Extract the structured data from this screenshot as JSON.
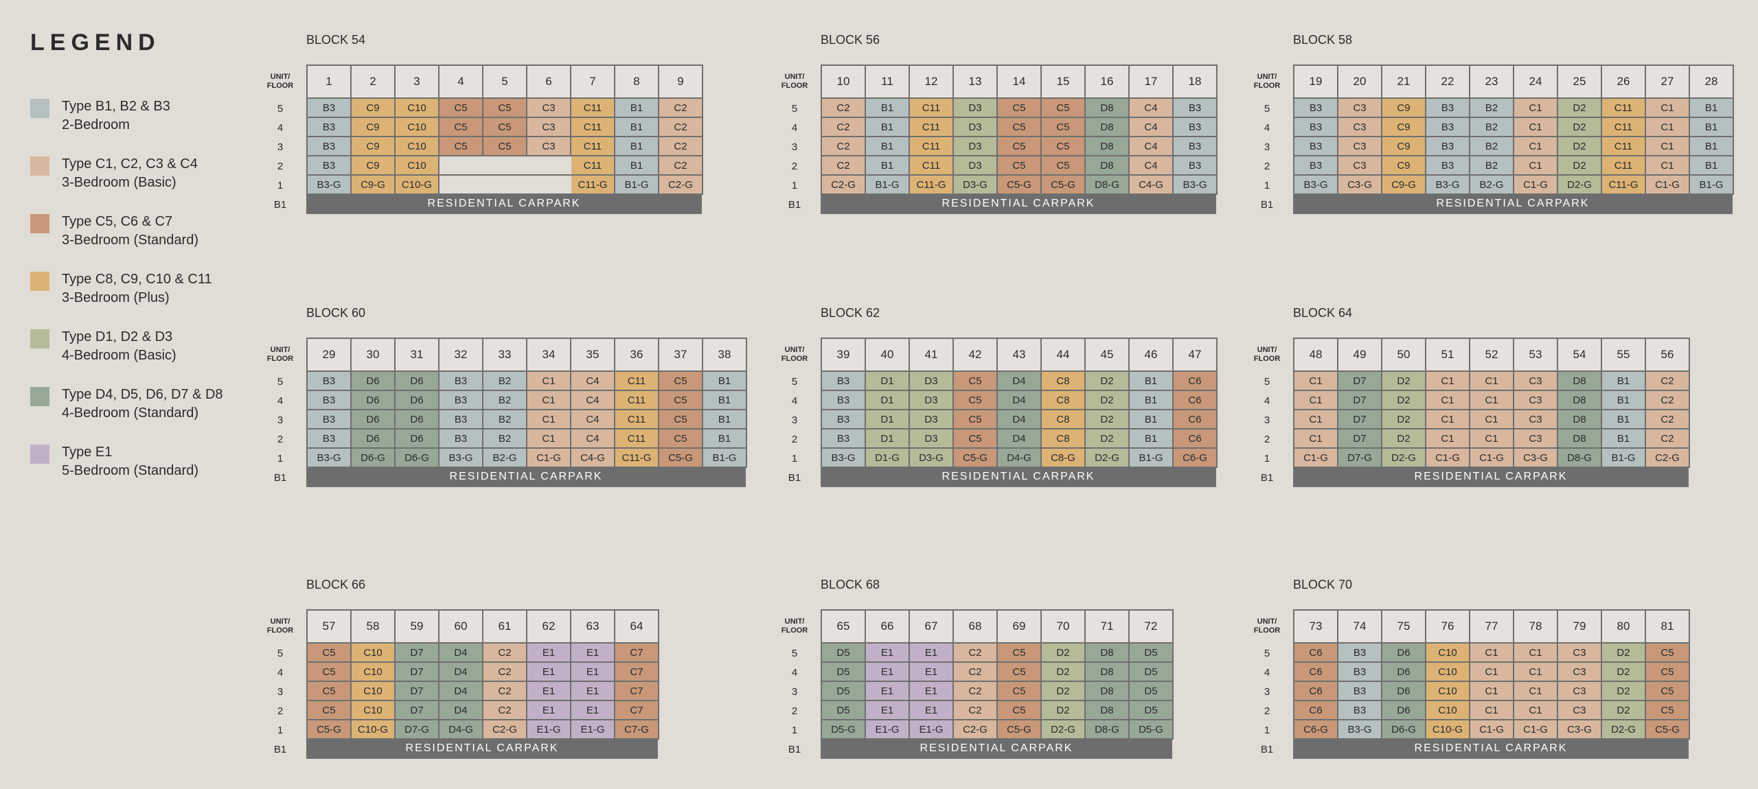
{
  "legend": {
    "title": "LEGEND",
    "items": [
      {
        "type": "B",
        "line1": "Type B1, B2 & B3",
        "line2": "2-Bedroom",
        "color": "#b5c0c0"
      },
      {
        "type": "CB",
        "line1": "Type C1, C2, C3 & C4",
        "line2": "3-Bedroom (Basic)",
        "color": "#d8b79e"
      },
      {
        "type": "CS",
        "line1": "Type C5, C6 & C7",
        "line2": "3-Bedroom (Standard)",
        "color": "#c89878"
      },
      {
        "type": "CP",
        "line1": "Type C8, C9, C10 & C11",
        "line2": "3-Bedroom (Plus)",
        "color": "#ddb375"
      },
      {
        "type": "DB",
        "line1": "Type D1, D2 & D3",
        "line2": "4-Bedroom (Basic)",
        "color": "#b5bb99"
      },
      {
        "type": "DS",
        "line1": "Type D4, D5, D6, D7 & D8",
        "line2": "4-Bedroom (Standard)",
        "color": "#97a897"
      },
      {
        "type": "E",
        "line1": "Type E1",
        "line2": "5-Bedroom (Standard)",
        "color": "#c2b0c8"
      }
    ]
  },
  "labels": {
    "unit_floor": "UNIT/ FLOOR",
    "floors": [
      "5",
      "4",
      "3",
      "2",
      "1",
      "B1"
    ],
    "carpark": "RESIDENTIAL CARPARK"
  },
  "blocks": [
    {
      "name": "BLOCK 54",
      "units": [
        "1",
        "2",
        "3",
        "4",
        "5",
        "6",
        "7",
        "8",
        "9"
      ],
      "upper": [
        "B3",
        "C9",
        "C10",
        "C5",
        "C5",
        "C3",
        "C11",
        "B1",
        "C2"
      ],
      "ground": [
        "B3-G",
        "C9-G",
        "C10-G",
        "",
        "",
        "",
        "C11-G",
        "B1-G",
        "C2-G"
      ],
      "floor2_empty": [
        3,
        4,
        5
      ]
    },
    {
      "name": "BLOCK 56",
      "units": [
        "10",
        "11",
        "12",
        "13",
        "14",
        "15",
        "16",
        "17",
        "18"
      ],
      "upper": [
        "C2",
        "B1",
        "C11",
        "D3",
        "C5",
        "C5",
        "D8",
        "C4",
        "B3"
      ],
      "ground": [
        "C2-G",
        "B1-G",
        "C11-G",
        "D3-G",
        "C5-G",
        "C5-G",
        "D8-G",
        "C4-G",
        "B3-G"
      ]
    },
    {
      "name": "BLOCK 58",
      "units": [
        "19",
        "20",
        "21",
        "22",
        "23",
        "24",
        "25",
        "26",
        "27",
        "28"
      ],
      "upper": [
        "B3",
        "C3",
        "C9",
        "B3",
        "B2",
        "C1",
        "D2",
        "C11",
        "C1",
        "B1"
      ],
      "ground": [
        "B3-G",
        "C3-G",
        "C9-G",
        "B3-G",
        "B2-G",
        "C1-G",
        "D2-G",
        "C11-G",
        "C1-G",
        "B1-G"
      ]
    },
    {
      "name": "BLOCK 60",
      "units": [
        "29",
        "30",
        "31",
        "32",
        "33",
        "34",
        "35",
        "36",
        "37",
        "38"
      ],
      "upper": [
        "B3",
        "D6",
        "D6",
        "B3",
        "B2",
        "C1",
        "C4",
        "C11",
        "C5",
        "B1"
      ],
      "ground": [
        "B3-G",
        "D6-G",
        "D6-G",
        "B3-G",
        "B2-G",
        "C1-G",
        "C4-G",
        "C11-G",
        "C5-G",
        "B1-G"
      ]
    },
    {
      "name": "BLOCK 62",
      "units": [
        "39",
        "40",
        "41",
        "42",
        "43",
        "44",
        "45",
        "46",
        "47"
      ],
      "upper": [
        "B3",
        "D1",
        "D3",
        "C5",
        "D4",
        "C8",
        "D2",
        "B1",
        "C6"
      ],
      "ground": [
        "B3-G",
        "D1-G",
        "D3-G",
        "C5-G",
        "D4-G",
        "C8-G",
        "D2-G",
        "B1-G",
        "C6-G"
      ]
    },
    {
      "name": "BLOCK 64",
      "units": [
        "48",
        "49",
        "50",
        "51",
        "52",
        "53",
        "54",
        "55",
        "56"
      ],
      "upper": [
        "C1",
        "D7",
        "D2",
        "C1",
        "C1",
        "C3",
        "D8",
        "B1",
        "C2"
      ],
      "ground": [
        "C1-G",
        "D7-G",
        "D2-G",
        "C1-G",
        "C1-G",
        "C3-G",
        "D8-G",
        "B1-G",
        "C2-G"
      ]
    },
    {
      "name": "BLOCK 66",
      "units": [
        "57",
        "58",
        "59",
        "60",
        "61",
        "62",
        "63",
        "64"
      ],
      "upper": [
        "C5",
        "C10",
        "D7",
        "D4",
        "C2",
        "E1",
        "E1",
        "C7"
      ],
      "ground": [
        "C5-G",
        "C10-G",
        "D7-G",
        "D4-G",
        "C2-G",
        "E1-G",
        "E1-G",
        "C7-G"
      ]
    },
    {
      "name": "BLOCK 68",
      "units": [
        "65",
        "66",
        "67",
        "68",
        "69",
        "70",
        "71",
        "72"
      ],
      "upper": [
        "D5",
        "E1",
        "E1",
        "C2",
        "C5",
        "D2",
        "D8",
        "D5"
      ],
      "ground": [
        "D5-G",
        "E1-G",
        "E1-G",
        "C2-G",
        "C5-G",
        "D2-G",
        "D8-G",
        "D5-G"
      ]
    },
    {
      "name": "BLOCK 70",
      "units": [
        "73",
        "74",
        "75",
        "76",
        "77",
        "78",
        "79",
        "80",
        "81"
      ],
      "upper": [
        "C6",
        "B3",
        "D6",
        "C10",
        "C1",
        "C1",
        "C3",
        "D2",
        "C5"
      ],
      "ground": [
        "C6-G",
        "B3-G",
        "D6-G",
        "C10-G",
        "C1-G",
        "C1-G",
        "C3-G",
        "D2-G",
        "C5-G"
      ]
    }
  ]
}
